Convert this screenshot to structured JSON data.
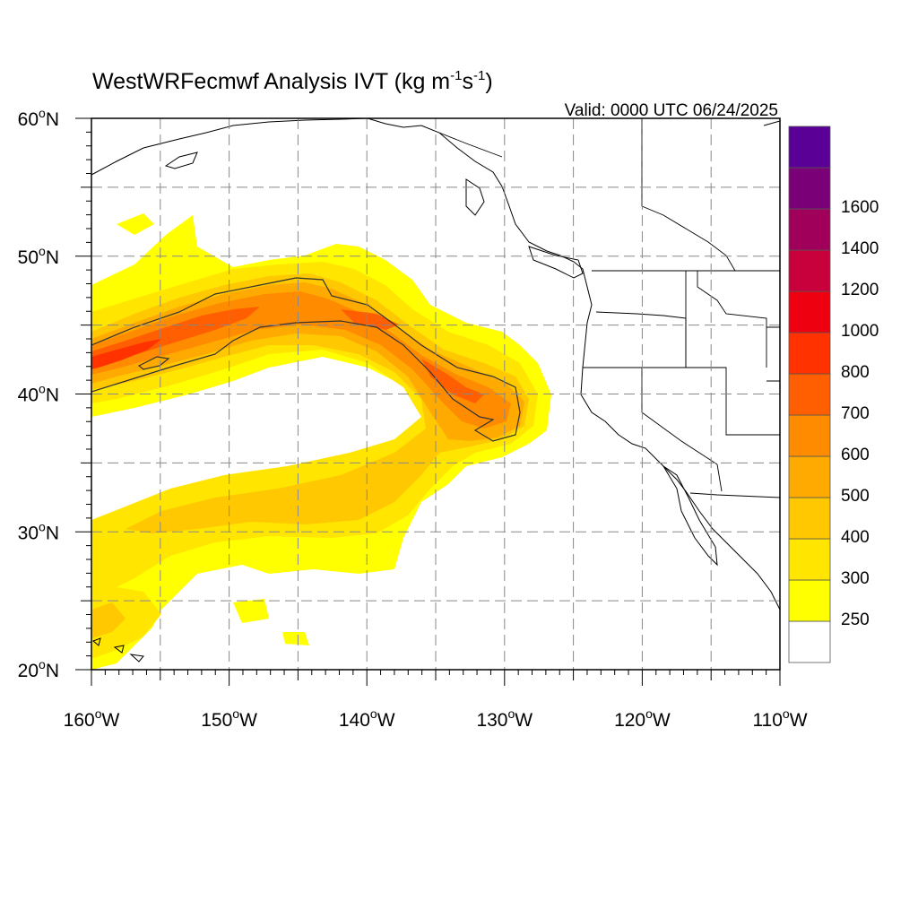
{
  "title": {
    "prefix": "WestWRFecmwf Analysis IVT (kg m",
    "sup1": "-1",
    "mid": "s",
    "sup2": "-1",
    "suffix": ")"
  },
  "valid_text": "Valid: 0000 UTC 06/24/2025",
  "map": {
    "lon_range": [
      -160,
      -110
    ],
    "lat_range": [
      20,
      60
    ],
    "grid": "dashed",
    "lon_ticks": [
      {
        "value": -160,
        "deg": "160",
        "hem": "W"
      },
      {
        "value": -150,
        "deg": "150",
        "hem": "W"
      },
      {
        "value": -140,
        "deg": "140",
        "hem": "W"
      },
      {
        "value": -130,
        "deg": "130",
        "hem": "W"
      },
      {
        "value": -120,
        "deg": "120",
        "hem": "W"
      },
      {
        "value": -110,
        "deg": "110",
        "hem": "W"
      }
    ],
    "lat_ticks": [
      {
        "value": 60,
        "deg": "60",
        "hem": "N"
      },
      {
        "value": 50,
        "deg": "50",
        "hem": "N"
      },
      {
        "value": 40,
        "deg": "40",
        "hem": "N"
      },
      {
        "value": 30,
        "deg": "30",
        "hem": "N"
      },
      {
        "value": 20,
        "deg": "20",
        "hem": "N"
      }
    ],
    "degree_symbol": "o"
  },
  "colorbar": {
    "colors": [
      "#ffffff",
      "#ffff00",
      "#ffe500",
      "#ffc800",
      "#ffaa00",
      "#ff8c00",
      "#ff5f00",
      "#ff3200",
      "#ef0010",
      "#c8003c",
      "#a0005a",
      "#7a0078",
      "#5a0096"
    ],
    "labels": [
      "250",
      "300",
      "400",
      "500",
      "600",
      "700",
      "800",
      "1000",
      "1200",
      "1400",
      "1600"
    ]
  },
  "chart_data": {
    "type": "heatmap",
    "variable": "IVT",
    "units": "kg m-1 s-1",
    "levels": [
      250,
      300,
      400,
      500,
      600,
      700,
      800,
      1000,
      1200,
      1400,
      1600
    ],
    "features": [
      {
        "name": "atmospheric river core",
        "from_lon": -160,
        "from_lat": 42,
        "peak_lon": -141,
        "peak_lat": 46,
        "to_lon": -129,
        "to_lat": 39,
        "max_level": 700
      },
      {
        "name": "subtropical moisture band",
        "from_lon": -160,
        "from_lat": 23,
        "to_lon": -130,
        "to_lat": 36,
        "max_level": 400
      }
    ]
  }
}
